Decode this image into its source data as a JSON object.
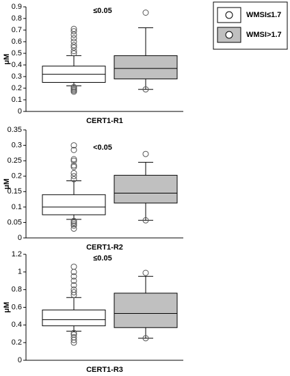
{
  "legend": {
    "position": "top right",
    "items": [
      {
        "name": "WMSI≤1.7",
        "color": "#ffffff"
      },
      {
        "name": "WMSI>1.7",
        "color": "#c0c0c0"
      }
    ]
  },
  "chart_data": [
    {
      "type": "box",
      "annotation": "≤0.05",
      "x_label": "CERT1-R1",
      "y_label": "μM",
      "ylim": [
        0,
        0.9
      ],
      "yticks": [
        0,
        0.1,
        0.2,
        0.3,
        0.4,
        0.5,
        0.6,
        0.7,
        0.8,
        0.9
      ],
      "series": [
        {
          "color": "#ffffff",
          "whisker_low": 0.22,
          "q1": 0.25,
          "median": 0.32,
          "q3": 0.39,
          "whisker_high": 0.48,
          "outliers": [
            0.5,
            0.52,
            0.55,
            0.57,
            0.6,
            0.63,
            0.66,
            0.69,
            0.71,
            0.21,
            0.2,
            0.19,
            0.18,
            0.17
          ]
        },
        {
          "color": "#c0c0c0",
          "whisker_low": 0.19,
          "q1": 0.28,
          "median": 0.37,
          "q3": 0.48,
          "whisker_high": 0.72,
          "outliers": [
            0.85,
            0.19
          ]
        }
      ]
    },
    {
      "type": "box",
      "annotation": "<0.05",
      "x_label": "CERT1-R2",
      "y_label": "μM",
      "ylim": [
        0,
        0.35
      ],
      "yticks": [
        0,
        0.05,
        0.1,
        0.15,
        0.2,
        0.25,
        0.3,
        0.35
      ],
      "series": [
        {
          "color": "#ffffff",
          "whisker_low": 0.06,
          "q1": 0.075,
          "median": 0.1,
          "q3": 0.14,
          "whisker_high": 0.185,
          "outliers": [
            0.19,
            0.2,
            0.21,
            0.23,
            0.235,
            0.25,
            0.255,
            0.285,
            0.3,
            0.055,
            0.05,
            0.045,
            0.04,
            0.03
          ]
        },
        {
          "color": "#c0c0c0",
          "whisker_low": 0.057,
          "q1": 0.113,
          "median": 0.145,
          "q3": 0.203,
          "whisker_high": 0.245,
          "outliers": [
            0.272,
            0.057
          ]
        }
      ]
    },
    {
      "type": "box",
      "annotation": "≤0.05",
      "x_label": "CERT1-R3",
      "y_label": "μM",
      "ylim": [
        0,
        1.2
      ],
      "yticks": [
        0,
        0.2,
        0.4,
        0.6,
        0.8,
        1,
        1.2
      ],
      "series": [
        {
          "color": "#ffffff",
          "whisker_low": 0.33,
          "q1": 0.39,
          "median": 0.46,
          "q3": 0.57,
          "whisker_high": 0.71,
          "outliers": [
            0.74,
            0.77,
            0.8,
            0.85,
            0.9,
            0.95,
            1.0,
            1.06,
            0.31,
            0.29,
            0.26,
            0.23,
            0.2
          ]
        },
        {
          "color": "#c0c0c0",
          "whisker_low": 0.25,
          "q1": 0.37,
          "median": 0.53,
          "q3": 0.76,
          "whisker_high": 0.95,
          "outliers": [
            0.99,
            0.25
          ]
        }
      ]
    }
  ]
}
